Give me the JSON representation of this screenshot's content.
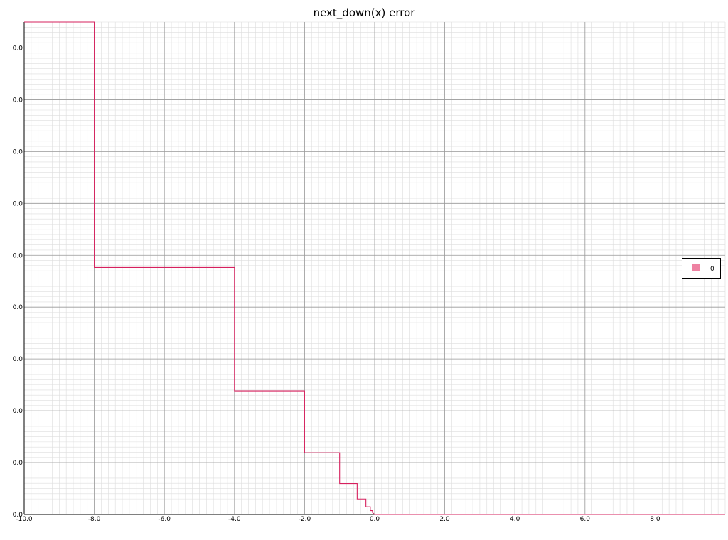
{
  "chart_data": {
    "type": "line",
    "title": "next_down(x) error",
    "xlabel": "",
    "ylabel": "",
    "xlim": [
      -10.0,
      10.0
    ],
    "ylim": [
      0.0,
      0.0019
    ],
    "x_ticks": [
      {
        "value": -10.0,
        "label": "-10.0"
      },
      {
        "value": -8.0,
        "label": "-8.0"
      },
      {
        "value": -6.0,
        "label": "-6.0"
      },
      {
        "value": -4.0,
        "label": "-4.0"
      },
      {
        "value": -2.0,
        "label": "-2.0"
      },
      {
        "value": 0.0,
        "label": "0.0"
      },
      {
        "value": 2.0,
        "label": "2.0"
      },
      {
        "value": 4.0,
        "label": "4.0"
      },
      {
        "value": 6.0,
        "label": "6.0"
      },
      {
        "value": 8.0,
        "label": "8.0"
      }
    ],
    "y_ticks": [
      {
        "value": 0.0,
        "label": "0.0"
      },
      {
        "value": 0.0002,
        "label": "0.0"
      },
      {
        "value": 0.0004,
        "label": "0.0"
      },
      {
        "value": 0.0006,
        "label": "0.0"
      },
      {
        "value": 0.0008,
        "label": "0.0"
      },
      {
        "value": 0.001,
        "label": "0.0"
      },
      {
        "value": 0.0012,
        "label": "0.0"
      },
      {
        "value": 0.0014,
        "label": "0.0"
      },
      {
        "value": 0.0016,
        "label": "0.0"
      },
      {
        "value": 0.0018,
        "label": "0.0"
      }
    ],
    "grid": true,
    "legend_position": "right",
    "series": [
      {
        "name": "0",
        "color": "#d6205e",
        "legend_color": "#ee82a2",
        "x": [
          -10.0,
          -8.0,
          -8.0,
          -4.0,
          -4.0,
          -2.0,
          -2.0,
          -1.0,
          -1.0,
          -0.5,
          -0.5,
          -0.25,
          -0.25,
          -0.125,
          -0.125,
          -0.0625,
          -0.0625,
          0.0,
          10.0
        ],
        "y": [
          0.0019,
          0.0019,
          0.000953,
          0.000953,
          0.000477,
          0.000477,
          0.000238,
          0.000238,
          0.000119,
          0.000119,
          5.96e-05,
          5.96e-05,
          2.98e-05,
          2.98e-05,
          1.49e-05,
          1.49e-05,
          7.5e-06,
          0.0,
          0.0
        ]
      }
    ]
  }
}
